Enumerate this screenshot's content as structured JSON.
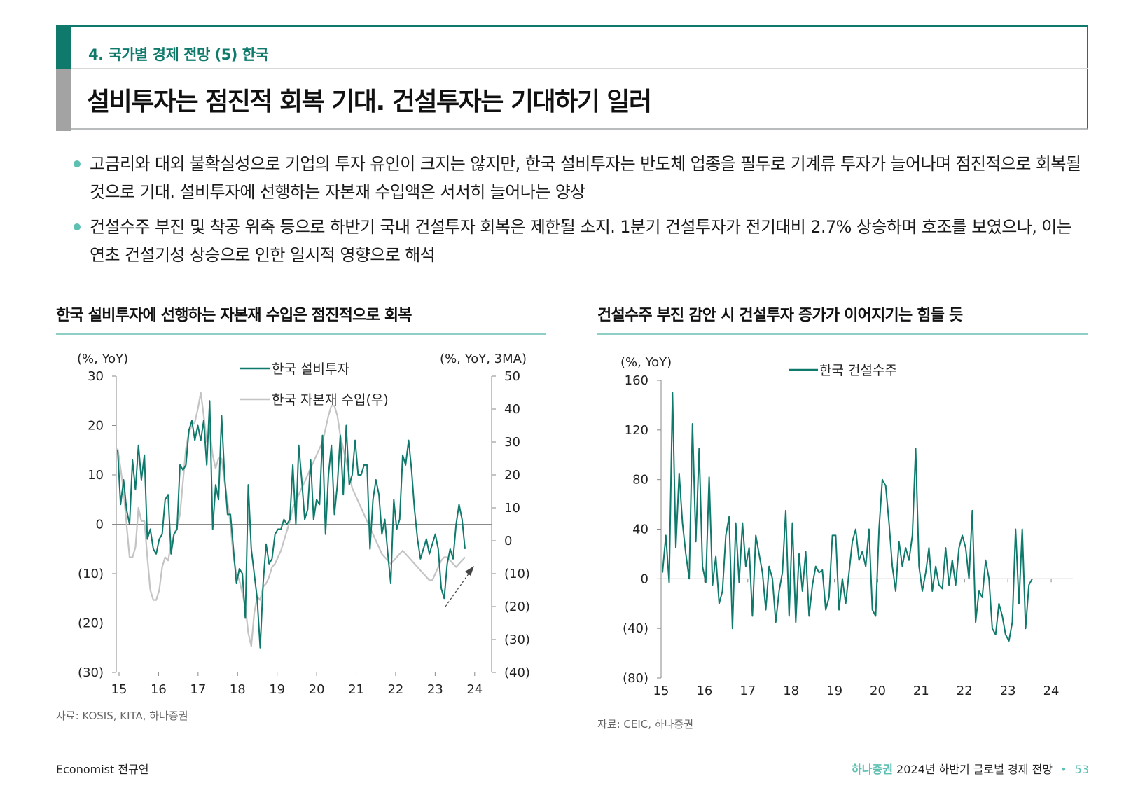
{
  "header": {
    "section_label": "4. 국가별 경제 전망 (5) 한국",
    "title": "설비투자는 점진적 회복 기대. 건설투자는 기대하기 일러"
  },
  "bullets": [
    "고금리와 대외 불확실성으로 기업의 투자 유인이 크지는 않지만, 한국 설비투자는 반도체 업종을 필두로 기계류 투자가 늘어나며 점진적으로 회복될 것으로 기대. 설비투자에 선행하는 자본재 수입액은 서서히 늘어나는 양상",
    "건설수주 부진 및 착공 위축 등으로 하반기 국내 건설투자 회복은 제한될 소지. 1분기 건설투자가 전기대비 2.7% 상승하며 호조를 보였으나, 이는 연초 건설기성 상승으로 인한 일시적 영향으로 해석"
  ],
  "colors": {
    "accent": "#0f7a6c",
    "light_accent": "#5ec0b3",
    "gray_series": "#c4c4c4"
  },
  "chart_data": [
    {
      "type": "line",
      "title": "한국 설비투자에 선행하는 자본재 수입은 점진적으로 회복",
      "left_axis_unit": "(%, YoY)",
      "right_axis_unit": "(%, YoY, 3MA)",
      "ylim_left": [
        -30,
        30
      ],
      "ylim_right": [
        -40,
        50
      ],
      "left_ticks": [
        "30",
        "20",
        "10",
        "0",
        "(10)",
        "(20)",
        "(30)"
      ],
      "right_ticks": [
        "50",
        "40",
        "30",
        "20",
        "10",
        "0",
        "(10)",
        "(20)",
        "(30)",
        "(40)"
      ],
      "x_ticks": [
        "15",
        "16",
        "17",
        "18",
        "19",
        "20",
        "21",
        "22",
        "23",
        "24"
      ],
      "x_range": [
        2015.0,
        2024.5
      ],
      "source": "자료: KOSIS, KITA, 하나증권",
      "series": [
        {
          "name": "한국 설비투자",
          "axis": "left",
          "color": "#0f7a6c",
          "values": [
            15,
            4,
            9,
            3,
            0,
            13,
            7,
            16,
            9,
            14,
            -3,
            -1,
            -5,
            -6,
            -3,
            -2,
            5,
            6,
            -6,
            -2,
            -1,
            12,
            11,
            12,
            19,
            21,
            17,
            20,
            17,
            21,
            12,
            25,
            -1,
            8,
            5,
            22,
            10,
            2,
            2,
            -5,
            -12,
            -9,
            -10,
            -19,
            8,
            -5,
            -10,
            -15,
            -25,
            -12,
            -4,
            -8,
            -7,
            -2,
            -1,
            -1,
            1,
            0,
            1,
            12,
            0,
            16,
            9,
            1,
            3,
            13,
            1,
            5,
            4,
            18,
            -2,
            10,
            16,
            2,
            8,
            18,
            6,
            20,
            8,
            10,
            17,
            10,
            10,
            12,
            12,
            -5,
            5,
            9,
            6,
            -2,
            1,
            -6,
            -12,
            5,
            -1,
            1,
            14,
            12,
            17,
            11,
            3,
            -3,
            -7,
            -5,
            -3,
            -6,
            -4,
            -2,
            -5,
            -13,
            -15,
            -8,
            -5,
            -7,
            0,
            4,
            1,
            -5
          ]
        },
        {
          "name": "한국 자본재 수입(우)",
          "axis": "right",
          "color": "#c4c4c4",
          "values": [
            28,
            22,
            15,
            5,
            -5,
            -5,
            -2,
            10,
            6,
            6,
            -5,
            -15,
            -18,
            -18,
            -15,
            -8,
            -5,
            -6,
            -1,
            2,
            4,
            8,
            18,
            28,
            33,
            35,
            36,
            40,
            45,
            38,
            30,
            34,
            26,
            22,
            25,
            25,
            18,
            12,
            5,
            -5,
            -10,
            -12,
            -16,
            -20,
            -28,
            -32,
            -22,
            -17,
            -18,
            -14,
            -13,
            -11,
            -8,
            -7,
            -5,
            -3,
            0,
            3,
            6,
            10,
            12,
            14,
            16,
            18,
            20,
            22,
            24,
            26,
            28,
            30,
            34,
            38,
            41,
            41,
            38,
            32,
            28,
            24,
            20,
            16,
            14,
            12,
            10,
            8,
            6,
            4,
            2,
            0,
            -2,
            -4,
            -5,
            -6,
            -7,
            -6,
            -5,
            -4,
            -3,
            -4,
            -5,
            -6,
            -7,
            -8,
            -9,
            -10,
            -11,
            -12,
            -12,
            -10,
            -8,
            -6,
            -5,
            -5,
            -6,
            -7,
            -8,
            -7,
            -6,
            -5
          ]
        }
      ],
      "annotation": "dashed arrow pointing up-right at recent recovery"
    },
    {
      "type": "line",
      "title": "건설수주 부진 감안 시 건설투자 증가가 이어지기는 힘들 듯",
      "left_axis_unit": "(%, YoY)",
      "ylim": [
        -80,
        160
      ],
      "y_ticks": [
        "160",
        "120",
        "80",
        "40",
        "0",
        "(40)",
        "(80)"
      ],
      "x_ticks": [
        "15",
        "16",
        "17",
        "18",
        "19",
        "20",
        "21",
        "22",
        "23",
        "24"
      ],
      "x_range": [
        2015.0,
        2024.5
      ],
      "source": "자료: CEIC, 하나증권",
      "series": [
        {
          "name": "한국 건설수주",
          "color": "#0f7a6c",
          "values": [
            5,
            35,
            -3,
            150,
            25,
            85,
            45,
            20,
            0,
            125,
            30,
            105,
            10,
            -3,
            82,
            -5,
            18,
            -20,
            -10,
            35,
            50,
            -40,
            45,
            -3,
            45,
            10,
            25,
            -30,
            35,
            20,
            5,
            -25,
            10,
            0,
            -35,
            -10,
            5,
            55,
            -30,
            45,
            -35,
            20,
            -10,
            22,
            -30,
            -5,
            10,
            5,
            7,
            -25,
            -15,
            35,
            35,
            -25,
            0,
            -20,
            5,
            30,
            40,
            15,
            22,
            10,
            40,
            -25,
            -30,
            40,
            80,
            75,
            45,
            10,
            -10,
            30,
            10,
            25,
            15,
            35,
            105,
            10,
            -10,
            5,
            25,
            -10,
            10,
            -5,
            -8,
            25,
            -5,
            15,
            -5,
            25,
            35,
            25,
            0,
            55,
            -35,
            -10,
            -15,
            15,
            0,
            -40,
            -45,
            -20,
            -30,
            -45,
            -50,
            -35,
            40,
            -20,
            40,
            -40,
            -5,
            0
          ]
        }
      ]
    }
  ],
  "footer": {
    "author": "Economist 전규연",
    "brand": "하나증권",
    "report": "2024년 하반기 글로벌 경제 전망",
    "separator": "•",
    "page": "53"
  }
}
